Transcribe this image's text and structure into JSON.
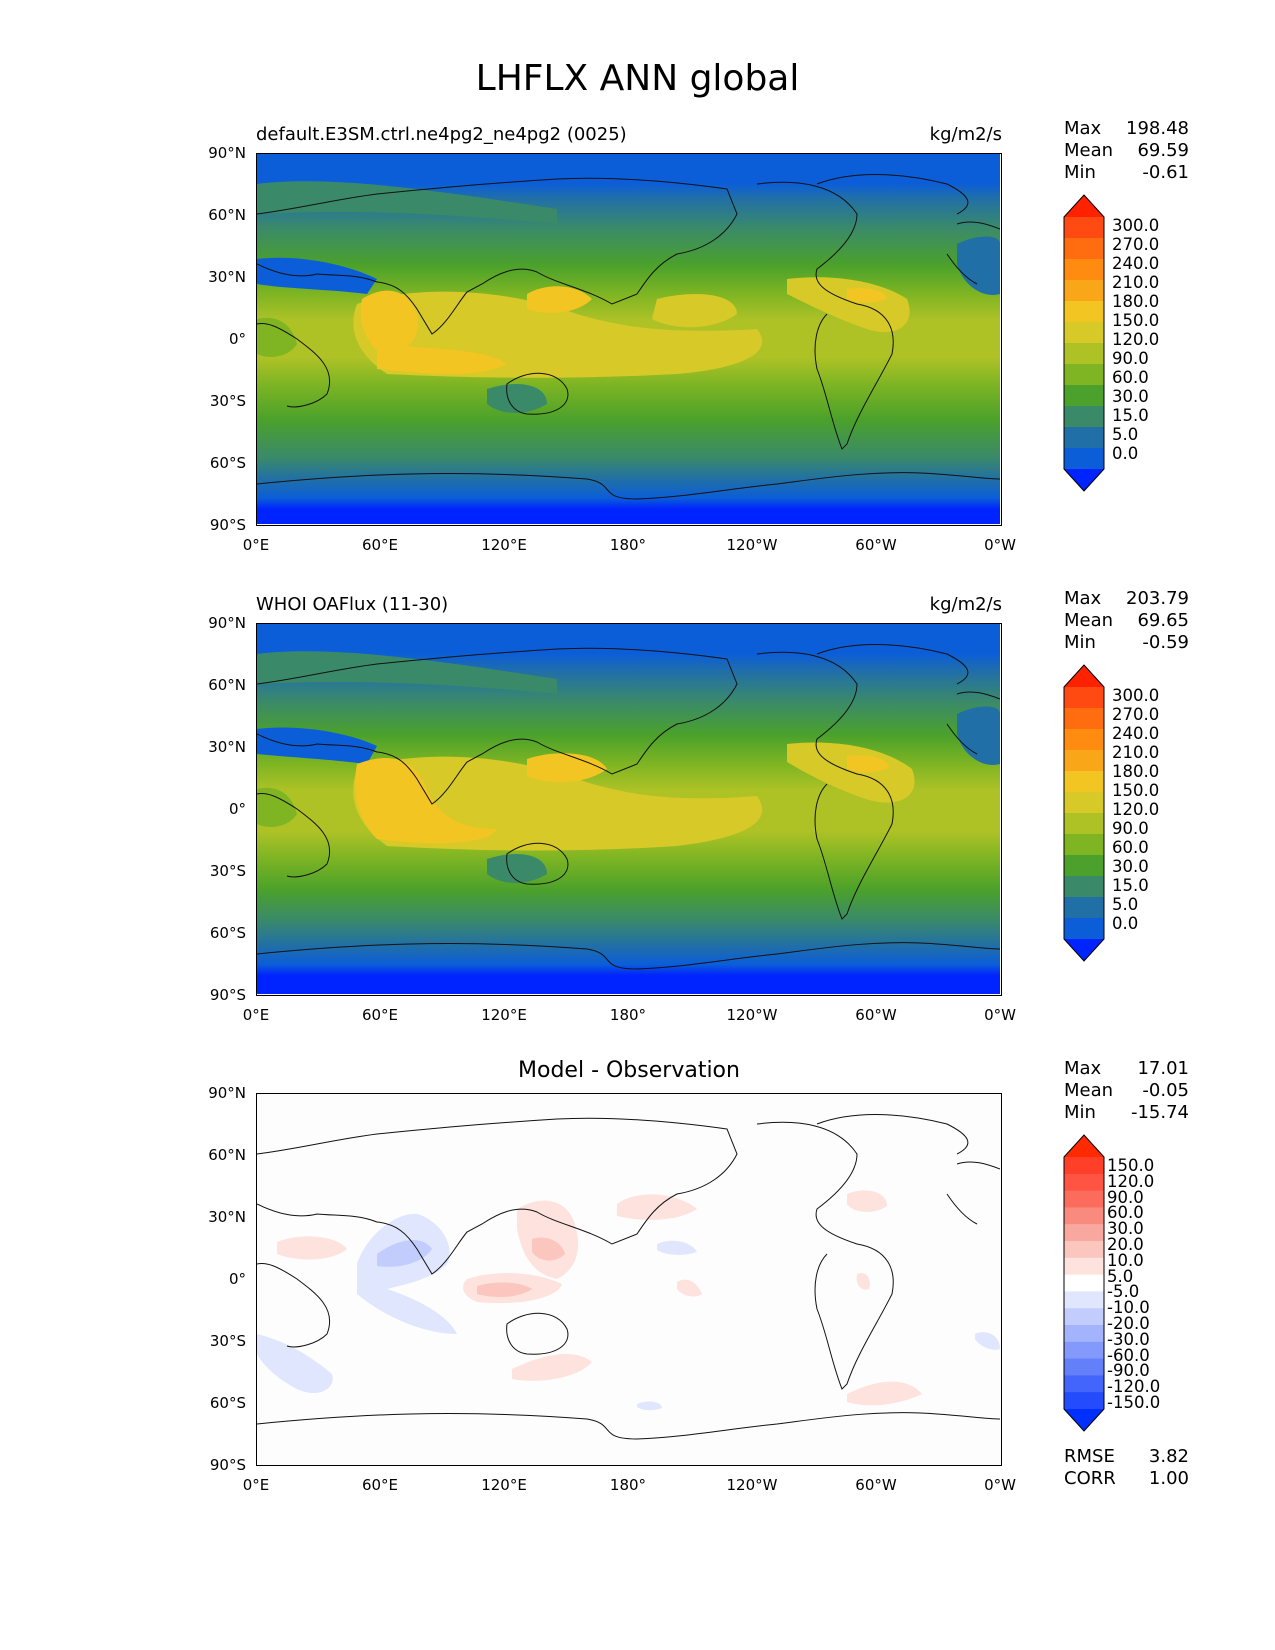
{
  "figure": {
    "title": "LHFLX ANN global"
  },
  "axis_labels": {
    "lat": [
      "90°N",
      "60°N",
      "30°N",
      "0°",
      "30°S",
      "60°S",
      "90°S"
    ],
    "lon": [
      "0°E",
      "60°E",
      "120°E",
      "180°",
      "120°W",
      "60°W",
      "0°W"
    ]
  },
  "panels": [
    {
      "title": "default.E3SM.ctrl.ne4pg2_ne4pg2 (0025)",
      "units": "kg/m2/s",
      "stats": [
        {
          "label": "Max",
          "value": "198.48"
        },
        {
          "label": "Mean",
          "value": "69.59"
        },
        {
          "label": "Min",
          "value": "-0.61"
        }
      ],
      "colorbar": {
        "labels": [
          "300.0",
          "270.0",
          "240.0",
          "210.0",
          "180.0",
          "150.0",
          "120.0",
          "90.0",
          "60.0",
          "30.0",
          "15.0",
          "5.0",
          "0.0"
        ],
        "colors": [
          "#ff2200",
          "#ff4b12",
          "#ff6d10",
          "#ff8b10",
          "#f9a619",
          "#f2c522",
          "#d6c928",
          "#aec226",
          "#7fb523",
          "#4ba12b",
          "#3a8a6a",
          "#216fa7",
          "#0b5ed8",
          "#0024ff"
        ]
      }
    },
    {
      "title": "WHOI OAFlux (11-30)",
      "units": "kg/m2/s",
      "stats": [
        {
          "label": "Max",
          "value": "203.79"
        },
        {
          "label": "Mean",
          "value": "69.65"
        },
        {
          "label": "Min",
          "value": "-0.59"
        }
      ],
      "colorbar": {
        "labels": [
          "300.0",
          "270.0",
          "240.0",
          "210.0",
          "180.0",
          "150.0",
          "120.0",
          "90.0",
          "60.0",
          "30.0",
          "15.0",
          "5.0",
          "0.0"
        ],
        "colors": [
          "#ff2200",
          "#ff4b12",
          "#ff6d10",
          "#ff8b10",
          "#f9a619",
          "#f2c522",
          "#d6c928",
          "#aec226",
          "#7fb523",
          "#4ba12b",
          "#3a8a6a",
          "#216fa7",
          "#0b5ed8",
          "#0024ff"
        ]
      }
    },
    {
      "title": "Model - Observation",
      "units": "",
      "stats": [
        {
          "label": "Max",
          "value": "17.01"
        },
        {
          "label": "Mean",
          "value": "-0.05"
        },
        {
          "label": "Min",
          "value": "-15.74"
        }
      ],
      "metrics": [
        {
          "label": "RMSE",
          "value": "3.82"
        },
        {
          "label": "CORR",
          "value": "1.00"
        }
      ],
      "colorbar": {
        "labels": [
          "150.0",
          "120.0",
          "90.0",
          "60.0",
          "30.0",
          "20.0",
          "10.0",
          "5.0",
          "-5.0",
          "-10.0",
          "-20.0",
          "-30.0",
          "-60.0",
          "-90.0",
          "-120.0",
          "-150.0"
        ],
        "colors": [
          "#ff2a00",
          "#ff3f28",
          "#ff5443",
          "#fb6c5d",
          "#f98a7e",
          "#f9a89f",
          "#fbc6be",
          "#fde2dd",
          "#ffffff",
          "#dfe6fe",
          "#c2cdfd",
          "#a3b4fc",
          "#8399fb",
          "#637ffa",
          "#4465fb",
          "#244bfc",
          "#0030ff"
        ]
      }
    }
  ]
}
